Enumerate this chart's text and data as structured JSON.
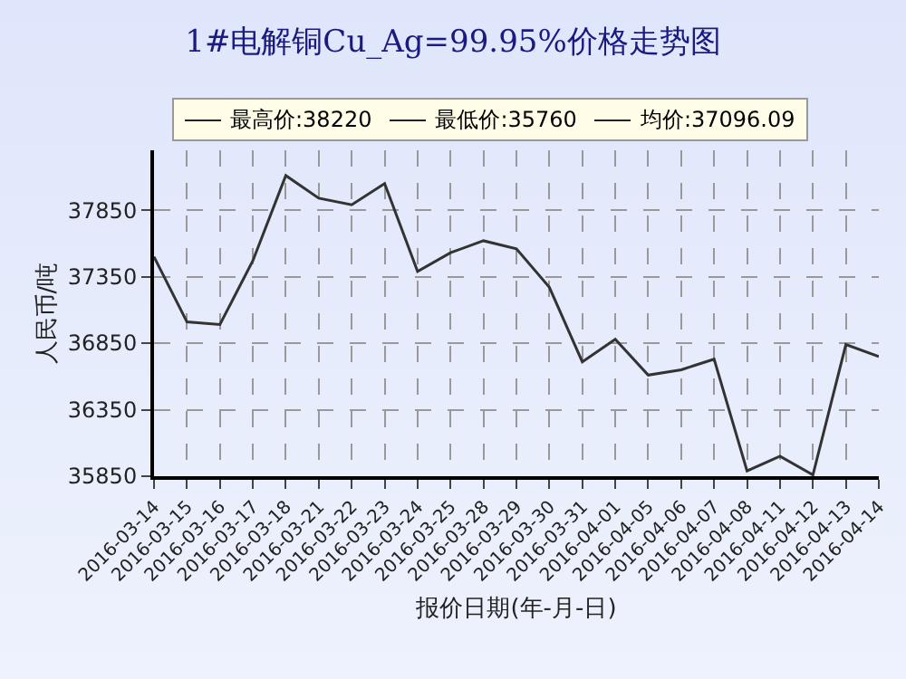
{
  "chart_data": {
    "type": "line",
    "title": "1#电解铜Cu_Ag=99.95%价格走势图",
    "xlabel": "报价日期(年-月-日)",
    "ylabel": "人民币/吨",
    "annotations": [
      "最高价:38220",
      "最低价:35760",
      "均价:37096.09"
    ],
    "categories": [
      "2016-03-14",
      "2016-03-15",
      "2016-03-16",
      "2016-03-17",
      "2016-03-18",
      "2016-03-21",
      "2016-03-22",
      "2016-03-23",
      "2016-03-24",
      "2016-03-25",
      "2016-03-28",
      "2016-03-29",
      "2016-03-30",
      "2016-03-31",
      "2016-04-01",
      "2016-04-05",
      "2016-04-06",
      "2016-04-07",
      "2016-04-08",
      "2016-04-11",
      "2016-04-12",
      "2016-04-13",
      "2016-04-14"
    ],
    "series": [
      {
        "color": "#333333",
        "values": [
          37500,
          37010,
          36990,
          37470,
          38110,
          37940,
          37890,
          38050,
          37390,
          37530,
          37620,
          37560,
          37270,
          36710,
          36880,
          36610,
          36650,
          36730,
          35890,
          36000,
          35860,
          36840,
          36750
        ]
      }
    ],
    "ylim": [
      35850,
      38300
    ],
    "yticks": [
      35850,
      36350,
      36850,
      37350,
      37850
    ],
    "grid": true,
    "line_style": "solid",
    "marker": "none"
  }
}
